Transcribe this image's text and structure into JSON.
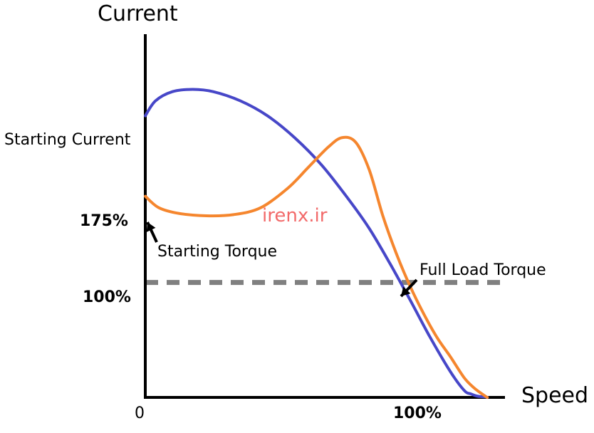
{
  "chart_data": {
    "type": "line",
    "title": "",
    "ylabel": "Current",
    "xlabel": "Speed",
    "xlim": [
      0,
      106
    ],
    "ylim": [
      0,
      316
    ],
    "x_tick_labels": [
      "0",
      "100%"
    ],
    "y_tick_labels": [
      "175%",
      "100%"
    ],
    "series": [
      {
        "name": "",
        "color": "#4747c8",
        "x": [
          0,
          3,
          8,
          14,
          20,
          28,
          36,
          44,
          52,
          60,
          66,
          72,
          78,
          84,
          90,
          94,
          96,
          98,
          100,
          100.8
        ],
        "y": [
          245,
          258,
          266,
          268,
          266,
          258,
          245,
          226,
          202,
          172,
          147,
          117,
          85,
          52,
          22,
          6,
          3,
          1,
          0.5,
          0
        ]
      },
      {
        "name": "",
        "color": "#f5862e",
        "x": [
          0,
          4,
          10,
          18,
          26,
          34,
          42,
          48,
          54,
          58,
          62,
          66,
          70,
          74,
          78,
          82,
          86,
          90,
          94,
          97,
          100,
          100.8
        ],
        "y": [
          175,
          165,
          160,
          158,
          159,
          165,
          182,
          200,
          218,
          226,
          222,
          198,
          158,
          125,
          97,
          73,
          52,
          35,
          17,
          8,
          1.5,
          0
        ]
      }
    ],
    "reference_lines": [
      {
        "y": 100,
        "style": "dashed",
        "color": "#808080",
        "x_end": 105
      }
    ],
    "annotations": {
      "starting_current": "Starting Current",
      "starting_torque": "Starting Torque",
      "full_load_torque": "Full Load Torque"
    },
    "grid": false,
    "legend": "none"
  },
  "watermark": "irenx.ir"
}
